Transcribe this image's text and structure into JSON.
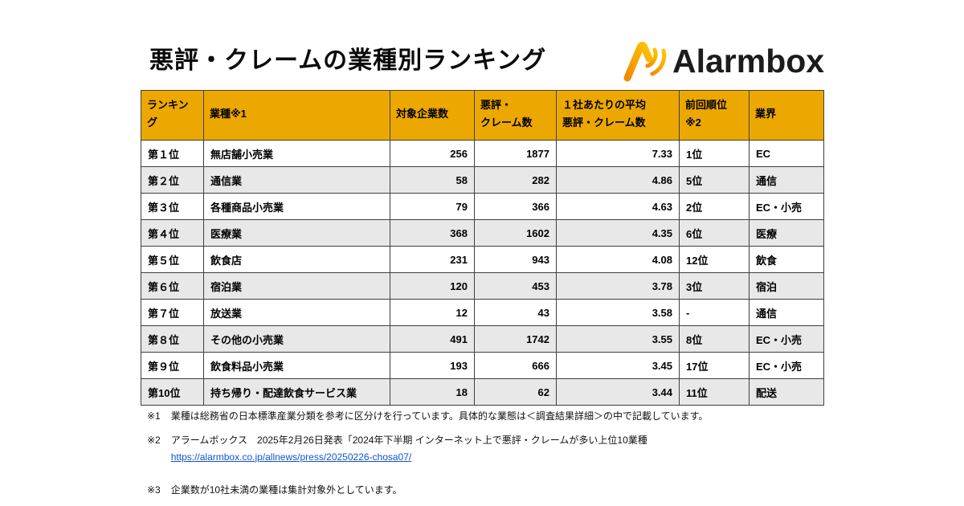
{
  "colors": {
    "header_bg": "#ECA800",
    "row_alt_bg": "#E8E8E8",
    "border": "#3f3f3f",
    "link": "#1155CC",
    "logo_orange": "#F29600",
    "logo_yellow": "#FFB800"
  },
  "header": {
    "title": "悪評・クレームの業種別ランキング",
    "logo_text": "Alarmbox",
    "logo_icon": "alarmbox-signal-a-icon"
  },
  "table": {
    "headers": [
      "ランキング",
      "業種※1",
      "対象企業数",
      "悪評・\nクレーム数",
      "１社あたりの平均\n悪評・クレーム数",
      "前回順位\n※2",
      "業界"
    ],
    "column_aligns": [
      "left",
      "left",
      "right",
      "right",
      "right",
      "left",
      "left"
    ],
    "rows": [
      [
        "第１位",
        "無店舗小売業",
        "256",
        "1877",
        "7.33",
        "1位",
        "EC"
      ],
      [
        "第２位",
        "通信業",
        "58",
        "282",
        "4.86",
        "5位",
        "通信"
      ],
      [
        "第３位",
        "各種商品小売業",
        "79",
        "366",
        "4.63",
        "2位",
        "EC・小売"
      ],
      [
        "第４位",
        "医療業",
        "368",
        "1602",
        "4.35",
        "6位",
        "医療"
      ],
      [
        "第５位",
        "飲食店",
        "231",
        "943",
        "4.08",
        "12位",
        "飲食"
      ],
      [
        "第６位",
        "宿泊業",
        "120",
        "453",
        "3.78",
        "3位",
        "宿泊"
      ],
      [
        "第７位",
        "放送業",
        "12",
        "43",
        "3.58",
        "-",
        "通信"
      ],
      [
        "第８位",
        "その他の小売業",
        "491",
        "1742",
        "3.55",
        "8位",
        "EC・小売"
      ],
      [
        "第９位",
        "飲食料品小売業",
        "193",
        "666",
        "3.45",
        "17位",
        "EC・小売"
      ],
      [
        "第10位",
        "持ち帰り・配達飲食サービス業",
        "18",
        "62",
        "3.44",
        "11位",
        "配送"
      ]
    ]
  },
  "footnotes": [
    {
      "label": "※1",
      "text": "業種は総務省の日本標準産業分類を参考に区分けを行っています。具体的な業態は＜調査結果詳細＞の中で記載しています。"
    },
    {
      "label": "※2",
      "text": "アラームボックス　2025年2月26日発表「2024年下半期 インターネット上で悪評・クレームが多い上位10業種",
      "link": "https://alarmbox.co.jp/allnews/press/20250226-chosa07/"
    },
    {
      "label": "※3",
      "text": "企業数が10社未満の業種は集計対象外としています。"
    }
  ],
  "chart_data": {
    "type": "table",
    "title": "悪評・クレームの業種別ランキング",
    "columns": [
      "ランキング",
      "業種",
      "対象企業数",
      "悪評・クレーム数",
      "１社あたりの平均悪評・クレーム数",
      "前回順位",
      "業界"
    ],
    "rows": [
      [
        "第1位",
        "無店舗小売業",
        256,
        1877,
        7.33,
        "1位",
        "EC"
      ],
      [
        "第2位",
        "通信業",
        58,
        282,
        4.86,
        "5位",
        "通信"
      ],
      [
        "第3位",
        "各種商品小売業",
        79,
        366,
        4.63,
        "2位",
        "EC・小売"
      ],
      [
        "第4位",
        "医療業",
        368,
        1602,
        4.35,
        "6位",
        "医療"
      ],
      [
        "第5位",
        "飲食店",
        231,
        943,
        4.08,
        "12位",
        "飲食"
      ],
      [
        "第6位",
        "宿泊業",
        120,
        453,
        3.78,
        "3位",
        "宿泊"
      ],
      [
        "第7位",
        "放送業",
        12,
        43,
        3.58,
        "-",
        "通信"
      ],
      [
        "第8位",
        "その他の小売業",
        491,
        1742,
        3.55,
        "8位",
        "EC・小売"
      ],
      [
        "第9位",
        "飲食料品小売業",
        193,
        666,
        3.45,
        "17位",
        "EC・小売"
      ],
      [
        "第10位",
        "持ち帰り・配達飲食サービス業",
        18,
        62,
        3.44,
        "11位",
        "配送"
      ]
    ]
  }
}
